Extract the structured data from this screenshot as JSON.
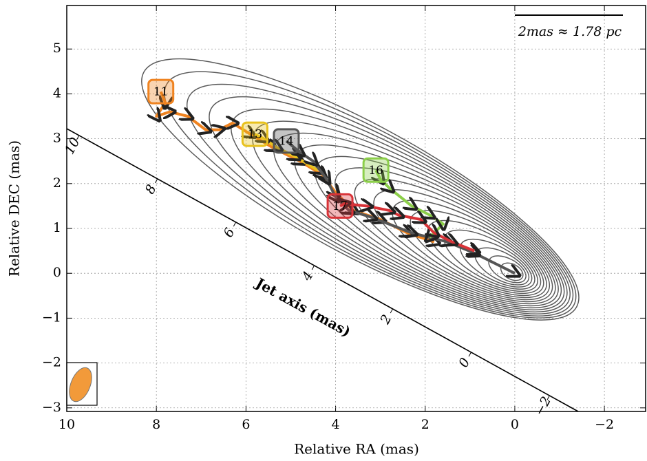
{
  "chart_data": {
    "type": "trajectory",
    "xlabel": "Relative RA (mas)",
    "ylabel": "Relative DEC (mas)",
    "xlim": [
      10,
      -2.92
    ],
    "ylim": [
      -3.08,
      5.97
    ],
    "xticks": [
      10,
      8,
      6,
      4,
      2,
      0,
      {
        "value": -2,
        "label": "−2"
      }
    ],
    "yticks": [
      {
        "value": -3,
        "label": "−3"
      },
      {
        "value": -2,
        "label": "−2"
      },
      {
        "value": -1,
        "label": "−1"
      },
      0,
      1,
      2,
      3,
      4,
      5
    ],
    "grid": true,
    "scale_label": "2mas ≈ 1.78 pc",
    "jet_axis_label": "Jet axis (mas)",
    "jet_axis_ticks": [
      10,
      8,
      6,
      4,
      2,
      0,
      {
        "value": -2,
        "label": "−2"
      }
    ],
    "series": [
      {
        "name": "11",
        "color": "#ef8320",
        "x": [
          1.8,
          2.4,
          3.0,
          3.6,
          4.0,
          4.3,
          4.8,
          5.4,
          5.9,
          6.3,
          6.6,
          6.9,
          7.3,
          7.7,
          8.0,
          7.8,
          7.9
        ],
        "y": [
          0.7,
          0.9,
          1.2,
          1.4,
          1.8,
          2.2,
          2.5,
          2.8,
          3.1,
          3.35,
          3.2,
          3.2,
          3.5,
          3.6,
          3.5,
          3.8,
          4.05
        ]
      },
      {
        "name": "13",
        "color": "#e8c21e",
        "x": [
          4.4,
          4.9,
          5.3,
          5.6,
          5.8
        ],
        "y": [
          2.3,
          2.6,
          2.8,
          3.0,
          3.1
        ]
      },
      {
        "name": "14",
        "color": "#555555",
        "x": [
          0,
          0.9,
          1.5,
          2.3,
          3.2,
          3.7,
          4.0,
          4.2,
          4.5,
          4.8,
          5.1
        ],
        "y": [
          0,
          0.45,
          0.7,
          0.9,
          1.25,
          1.4,
          1.7,
          2.1,
          2.5,
          2.7,
          2.95
        ]
      },
      {
        "name": "16",
        "color": "#8ccf4a",
        "x": [
          1.9,
          1.6,
          1.9,
          2.3,
          2.8,
          3.0,
          3.1
        ],
        "y": [
          0.8,
          1.1,
          1.3,
          1.5,
          1.9,
          2.1,
          2.3
        ]
      },
      {
        "name": "17",
        "color": "#d93338",
        "x": [
          0.9,
          1.4,
          1.8,
          2.1,
          2.6,
          2.8,
          3.3,
          3.8,
          3.9
        ],
        "y": [
          0.5,
          0.7,
          0.9,
          1.2,
          1.3,
          1.4,
          1.5,
          1.55,
          1.5
        ]
      }
    ]
  }
}
